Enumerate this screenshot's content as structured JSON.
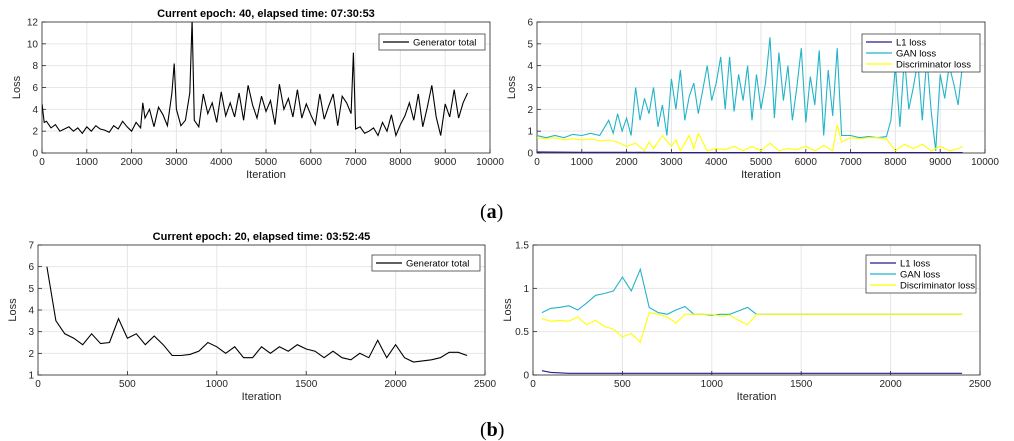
{
  "captions": {
    "a": "(a)",
    "b": "(b)"
  },
  "captions_bold_letter": {
    "a": "a",
    "b": "b"
  },
  "chart_data": [
    {
      "id": "a-left",
      "type": "line",
      "title": "Current epoch: 40, elapsed time: 07:30:53",
      "xlabel": "Iteration",
      "ylabel": "Loss",
      "xlim": [
        0,
        10000
      ],
      "ylim": [
        0,
        12
      ],
      "xticks": [
        0,
        1000,
        2000,
        3000,
        4000,
        5000,
        6000,
        7000,
        8000,
        9000,
        10000
      ],
      "yticks": [
        0,
        2,
        4,
        6,
        8,
        10,
        12
      ],
      "legend_position": "top-right",
      "grid": true,
      "series": [
        {
          "name": "Generator total",
          "color": "#000000",
          "x": [
            0,
            50,
            100,
            200,
            300,
            400,
            500,
            600,
            700,
            800,
            900,
            1000,
            1100,
            1200,
            1300,
            1400,
            1500,
            1600,
            1700,
            1800,
            1900,
            2000,
            2100,
            2200,
            2250,
            2300,
            2400,
            2500,
            2600,
            2700,
            2800,
            2900,
            2950,
            3000,
            3100,
            3200,
            3300,
            3350,
            3400,
            3500,
            3600,
            3700,
            3800,
            3900,
            4000,
            4100,
            4200,
            4300,
            4400,
            4500,
            4600,
            4700,
            4800,
            4900,
            5000,
            5100,
            5200,
            5300,
            5400,
            5500,
            5600,
            5700,
            5800,
            5900,
            6000,
            6100,
            6200,
            6300,
            6400,
            6500,
            6600,
            6700,
            6800,
            6900,
            6950,
            7000,
            7100,
            7200,
            7300,
            7400,
            7500,
            7600,
            7700,
            7800,
            7900,
            8000,
            8100,
            8200,
            8300,
            8400,
            8500,
            8600,
            8700,
            8800,
            8900,
            9000,
            9100,
            9200,
            9300,
            9400,
            9500
          ],
          "y": [
            4.5,
            2.8,
            2.9,
            2.3,
            2.6,
            2.0,
            2.2,
            2.4,
            2.0,
            2.3,
            1.8,
            2.4,
            2.0,
            2.5,
            2.2,
            2.1,
            1.9,
            2.5,
            2.2,
            2.9,
            2.4,
            2.0,
            2.8,
            2.3,
            4.6,
            3.2,
            4.0,
            2.4,
            4.2,
            3.5,
            2.5,
            5.5,
            8.2,
            4.0,
            2.5,
            3.0,
            5.5,
            12.2,
            3.0,
            2.4,
            5.4,
            3.6,
            4.6,
            2.8,
            5.6,
            3.4,
            4.6,
            3.3,
            5.5,
            3.0,
            6.2,
            4.4,
            3.2,
            5.2,
            3.8,
            4.8,
            2.6,
            6.3,
            4.0,
            5.0,
            3.3,
            5.8,
            3.2,
            4.5,
            3.5,
            2.6,
            5.4,
            3.1,
            4.3,
            5.4,
            2.5,
            5.2,
            4.6,
            3.6,
            9.2,
            2.2,
            2.4,
            1.8,
            2.0,
            2.3,
            1.6,
            2.8,
            2.0,
            3.5,
            1.6,
            2.6,
            3.4,
            4.6,
            3.0,
            5.4,
            2.4,
            4.2,
            6.2,
            3.3,
            1.6,
            4.5,
            3.3,
            5.8,
            3.2,
            4.6,
            5.5
          ]
        }
      ]
    },
    {
      "id": "a-right",
      "type": "line",
      "title": "",
      "xlabel": "Iteration",
      "ylabel": "Loss",
      "xlim": [
        0,
        10000
      ],
      "ylim": [
        0,
        6
      ],
      "xticks": [
        0,
        1000,
        2000,
        3000,
        4000,
        5000,
        6000,
        7000,
        8000,
        9000,
        10000
      ],
      "yticks": [
        0,
        1,
        2,
        3,
        4,
        5,
        6
      ],
      "legend_position": "top-right",
      "grid": true,
      "series": [
        {
          "name": "L1 loss",
          "color": "#2b1a8c",
          "x": [
            0,
            1000,
            2000,
            3000,
            4000,
            5000,
            6000,
            7000,
            8000,
            9000,
            9500
          ],
          "y": [
            0.05,
            0.03,
            0.03,
            0.02,
            0.02,
            0.02,
            0.02,
            0.02,
            0.02,
            0.02,
            0.02
          ]
        },
        {
          "name": "GAN loss",
          "color": "#22b4c8",
          "x": [
            0,
            200,
            400,
            600,
            800,
            1000,
            1200,
            1400,
            1600,
            1700,
            1800,
            1900,
            2000,
            2100,
            2200,
            2300,
            2400,
            2500,
            2600,
            2700,
            2800,
            2900,
            3000,
            3100,
            3200,
            3300,
            3400,
            3500,
            3600,
            3700,
            3800,
            3900,
            4000,
            4100,
            4200,
            4300,
            4400,
            4500,
            4600,
            4700,
            4800,
            4900,
            5000,
            5100,
            5200,
            5300,
            5400,
            5500,
            5600,
            5700,
            5800,
            5900,
            6000,
            6100,
            6200,
            6300,
            6400,
            6500,
            6600,
            6700,
            6800,
            7000,
            7200,
            7400,
            7600,
            7800,
            7900,
            8000,
            8100,
            8200,
            8300,
            8400,
            8500,
            8600,
            8700,
            8800,
            8900,
            9000,
            9100,
            9200,
            9300,
            9400,
            9500
          ],
          "y": [
            0.8,
            0.7,
            0.8,
            0.7,
            0.85,
            0.8,
            0.9,
            0.8,
            1.5,
            0.9,
            1.8,
            1.0,
            1.6,
            0.8,
            3.0,
            1.5,
            2.5,
            1.8,
            3.0,
            1.2,
            2.2,
            0.8,
            3.4,
            2.0,
            3.8,
            1.5,
            2.6,
            3.2,
            1.8,
            2.9,
            4.0,
            2.4,
            3.2,
            4.4,
            2.0,
            4.4,
            1.9,
            3.6,
            2.4,
            4.0,
            1.5,
            3.6,
            2.0,
            3.2,
            5.3,
            1.6,
            4.6,
            2.4,
            4.0,
            1.5,
            3.0,
            4.8,
            1.4,
            3.5,
            2.2,
            4.7,
            0.8,
            3.8,
            1.7,
            4.8,
            0.8,
            0.8,
            0.7,
            0.75,
            0.7,
            0.75,
            1.5,
            4.0,
            1.2,
            4.4,
            2.0,
            3.0,
            4.2,
            1.5,
            4.4,
            1.9,
            0.1,
            3.6,
            2.5,
            4.0,
            3.2,
            2.2,
            4.1
          ]
        },
        {
          "name": "Discriminator loss",
          "color": "#ffff00",
          "x": [
            0,
            200,
            400,
            600,
            800,
            1000,
            1200,
            1400,
            1600,
            1800,
            2000,
            2200,
            2400,
            2500,
            2600,
            2800,
            3000,
            3100,
            3200,
            3400,
            3500,
            3600,
            3800,
            4000,
            4200,
            4400,
            4600,
            4800,
            5000,
            5200,
            5400,
            5600,
            5800,
            6000,
            6200,
            6400,
            6600,
            6700,
            6800,
            7000,
            7200,
            7400,
            7600,
            7800,
            8000,
            8200,
            8400,
            8600,
            8800,
            9000,
            9200,
            9400,
            9500
          ],
          "y": [
            0.7,
            0.65,
            0.7,
            0.6,
            0.65,
            0.6,
            0.65,
            0.55,
            0.6,
            0.5,
            0.3,
            0.45,
            0.1,
            0.5,
            0.2,
            0.8,
            0.3,
            0.6,
            0.1,
            0.8,
            0.2,
            0.9,
            0.1,
            0.2,
            0.15,
            0.3,
            0.1,
            0.3,
            0.1,
            0.45,
            0.1,
            0.2,
            0.15,
            0.3,
            0.1,
            0.35,
            0.1,
            1.3,
            0.5,
            0.7,
            0.65,
            0.7,
            0.7,
            0.65,
            0.1,
            0.4,
            0.2,
            0.4,
            0.1,
            0.3,
            0.1,
            0.2,
            0.3
          ]
        }
      ]
    },
    {
      "id": "b-left",
      "type": "line",
      "title": "Current epoch: 20, elapsed time: 03:52:45",
      "xlabel": "Iteration",
      "ylabel": "Loss",
      "xlim": [
        0,
        2500
      ],
      "ylim": [
        1,
        7
      ],
      "xticks": [
        0,
        500,
        1000,
        1500,
        2000,
        2500
      ],
      "yticks": [
        1,
        2,
        3,
        4,
        5,
        6,
        7
      ],
      "legend_position": "top-right",
      "grid": true,
      "series": [
        {
          "name": "Generator total",
          "color": "#000000",
          "x": [
            50,
            100,
            150,
            200,
            250,
            300,
            350,
            400,
            450,
            500,
            550,
            600,
            650,
            700,
            750,
            800,
            850,
            900,
            950,
            1000,
            1050,
            1100,
            1150,
            1200,
            1250,
            1300,
            1350,
            1400,
            1450,
            1500,
            1550,
            1600,
            1650,
            1700,
            1750,
            1800,
            1850,
            1900,
            1950,
            2000,
            2050,
            2100,
            2150,
            2200,
            2250,
            2300,
            2350,
            2400
          ],
          "y": [
            6.0,
            3.5,
            2.9,
            2.7,
            2.4,
            2.9,
            2.45,
            2.5,
            3.6,
            2.7,
            2.9,
            2.4,
            2.8,
            2.4,
            1.9,
            1.9,
            1.95,
            2.1,
            2.5,
            2.3,
            2.0,
            2.3,
            1.8,
            1.8,
            2.3,
            2.0,
            2.3,
            2.1,
            2.4,
            2.2,
            2.1,
            1.8,
            2.1,
            1.8,
            1.7,
            2.0,
            1.8,
            2.6,
            1.8,
            2.4,
            1.8,
            1.6,
            1.65,
            1.7,
            1.8,
            2.05,
            2.05,
            1.9
          ]
        }
      ]
    },
    {
      "id": "b-right",
      "type": "line",
      "title": "",
      "xlabel": "Iteration",
      "ylabel": "Loss",
      "xlim": [
        0,
        2500
      ],
      "ylim": [
        0,
        1.5
      ],
      "xticks": [
        0,
        500,
        1000,
        1500,
        2000,
        2500
      ],
      "yticks": [
        0,
        0.5,
        1,
        1.5
      ],
      "legend_position": "top-right",
      "grid": true,
      "series": [
        {
          "name": "L1 loss",
          "color": "#2b1a8c",
          "x": [
            50,
            100,
            200,
            300,
            400,
            500,
            600,
            700,
            800,
            900,
            1000,
            1200,
            1400,
            1600,
            1800,
            2000,
            2200,
            2400
          ],
          "y": [
            0.05,
            0.03,
            0.02,
            0.02,
            0.02,
            0.02,
            0.02,
            0.02,
            0.02,
            0.02,
            0.02,
            0.02,
            0.02,
            0.02,
            0.02,
            0.02,
            0.02,
            0.02
          ]
        },
        {
          "name": "GAN loss",
          "color": "#22b4c8",
          "x": [
            50,
            100,
            150,
            200,
            250,
            300,
            350,
            400,
            450,
            500,
            550,
            600,
            650,
            700,
            750,
            800,
            850,
            900,
            950,
            1000,
            1050,
            1100,
            1150,
            1200,
            1250,
            1300,
            1400,
            1500,
            1600,
            1800,
            2000,
            2200,
            2400
          ],
          "y": [
            0.72,
            0.77,
            0.78,
            0.8,
            0.75,
            0.83,
            0.92,
            0.94,
            0.97,
            1.13,
            0.97,
            1.22,
            0.78,
            0.72,
            0.7,
            0.75,
            0.79,
            0.7,
            0.7,
            0.69,
            0.7,
            0.7,
            0.74,
            0.78,
            0.7,
            0.7,
            0.7,
            0.7,
            0.7,
            0.7,
            0.7,
            0.7,
            0.7
          ]
        },
        {
          "name": "Discriminator loss",
          "color": "#ffff00",
          "x": [
            50,
            100,
            150,
            200,
            250,
            300,
            350,
            400,
            450,
            500,
            550,
            600,
            650,
            700,
            750,
            800,
            850,
            900,
            950,
            1000,
            1050,
            1100,
            1150,
            1200,
            1250,
            1300,
            1400,
            1500,
            1600,
            1800,
            2000,
            2200,
            2400
          ],
          "y": [
            0.65,
            0.62,
            0.63,
            0.62,
            0.67,
            0.58,
            0.63,
            0.56,
            0.53,
            0.44,
            0.48,
            0.38,
            0.72,
            0.7,
            0.67,
            0.6,
            0.7,
            0.7,
            0.7,
            0.7,
            0.68,
            0.69,
            0.63,
            0.58,
            0.7,
            0.7,
            0.7,
            0.7,
            0.7,
            0.7,
            0.7,
            0.7,
            0.7
          ]
        }
      ]
    }
  ]
}
